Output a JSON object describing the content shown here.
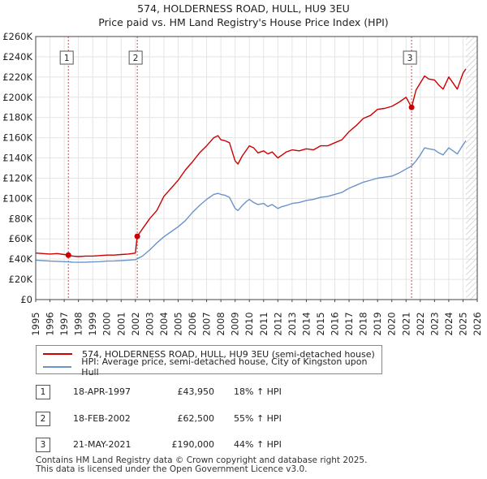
{
  "title": {
    "line1": "574, HOLDERNESS ROAD, HULL, HU9 3EU",
    "line2": "Price paid vs. HM Land Registry's House Price Index (HPI)"
  },
  "legend": {
    "property_label": "574, HOLDERNESS ROAD, HULL, HU9 3EU (semi-detached house)",
    "hpi_label": "HPI: Average price, semi-detached house, City of Kingston upon Hull"
  },
  "sales": [
    {
      "num": "1",
      "date": "18-APR-1997",
      "price": "£43,950",
      "hpi": "18% ↑ HPI"
    },
    {
      "num": "2",
      "date": "18-FEB-2002",
      "price": "£62,500",
      "hpi": "55% ↑ HPI"
    },
    {
      "num": "3",
      "date": "21-MAY-2021",
      "price": "£190,000",
      "hpi": "44% ↑ HPI"
    }
  ],
  "footer": {
    "line1": "Contains HM Land Registry data © Crown copyright and database right 2025.",
    "line2": "This data is licensed under the Open Government Licence v3.0."
  },
  "colors": {
    "property": "#cc0000",
    "hpi": "#6a93c9",
    "grid": "#e4e4e4",
    "plot_bg": "#ffffff",
    "future_hatch": "#c9c9c9",
    "marker_line": "#d05050"
  },
  "chart_data": {
    "type": "line",
    "x_range": [
      1995,
      2026
    ],
    "ylim": [
      0,
      260000
    ],
    "y_ticks": [
      0,
      20000,
      40000,
      60000,
      80000,
      100000,
      120000,
      140000,
      160000,
      180000,
      200000,
      220000,
      240000,
      260000
    ],
    "y_tick_labels": [
      "£0",
      "£20K",
      "£40K",
      "£60K",
      "£80K",
      "£100K",
      "£120K",
      "£140K",
      "£160K",
      "£180K",
      "£200K",
      "£220K",
      "£240K",
      "£260K"
    ],
    "x_ticks": [
      1995,
      1996,
      1997,
      1998,
      1999,
      2000,
      2001,
      2002,
      2003,
      2004,
      2005,
      2006,
      2007,
      2008,
      2009,
      2010,
      2011,
      2012,
      2013,
      2014,
      2015,
      2016,
      2017,
      2018,
      2019,
      2020,
      2021,
      2022,
      2023,
      2024,
      2025,
      2026
    ],
    "x_tick_labels": [
      "1995",
      "1996",
      "1997",
      "1998",
      "1999",
      "2000",
      "2001",
      "2002",
      "2003",
      "2004",
      "2005",
      "2006",
      "2007",
      "2008",
      "2009",
      "2010",
      "2011",
      "2012",
      "2013",
      "2014",
      "2015",
      "2016",
      "2017",
      "2018",
      "2019",
      "2020",
      "2021",
      "2022",
      "2023",
      "2024",
      "2025",
      "2026"
    ],
    "data_end_year": 2025.2,
    "series": [
      {
        "name": "574, HOLDERNESS ROAD, HULL, HU9 3EU (semi-detached house)",
        "x": [
          1995.0,
          1995.5,
          1996.0,
          1996.5,
          1997.0,
          1997.29,
          1997.6,
          1998.0,
          1998.5,
          1999.0,
          1999.5,
          2000.0,
          2000.5,
          2001.0,
          2001.5,
          2002.0,
          2002.13,
          2002.5,
          2003.0,
          2003.5,
          2004.0,
          2004.5,
          2005.0,
          2005.5,
          2006.0,
          2006.5,
          2007.0,
          2007.5,
          2007.8,
          2008.0,
          2008.3,
          2008.6,
          2009.0,
          2009.2,
          2009.5,
          2009.8,
          2010.0,
          2010.3,
          2010.6,
          2011.0,
          2011.3,
          2011.6,
          2012.0,
          2012.3,
          2012.6,
          2013.0,
          2013.5,
          2014.0,
          2014.5,
          2015.0,
          2015.5,
          2016.0,
          2016.5,
          2017.0,
          2017.5,
          2018.0,
          2018.5,
          2019.0,
          2019.5,
          2020.0,
          2020.5,
          2021.0,
          2021.39,
          2021.7,
          2022.0,
          2022.3,
          2022.6,
          2023.0,
          2023.3,
          2023.6,
          2024.0,
          2024.3,
          2024.6,
          2025.0,
          2025.2
        ],
        "values": [
          46000,
          45500,
          45000,
          45500,
          44500,
          43950,
          43000,
          42500,
          43000,
          43000,
          43500,
          44000,
          44000,
          44500,
          45000,
          46000,
          62500,
          70000,
          80000,
          88000,
          102000,
          110000,
          118000,
          128000,
          136000,
          145000,
          152000,
          160000,
          162000,
          158000,
          157000,
          155000,
          137000,
          134000,
          142000,
          148000,
          152000,
          150000,
          145000,
          147000,
          144000,
          146000,
          140000,
          143000,
          146000,
          148000,
          147000,
          149000,
          148000,
          152000,
          152000,
          155000,
          158000,
          166000,
          172000,
          179000,
          182000,
          188000,
          189000,
          191000,
          195000,
          200000,
          190000,
          207000,
          214000,
          221000,
          218000,
          217000,
          212000,
          208000,
          220000,
          214000,
          208000,
          224000,
          228000
        ]
      },
      {
        "name": "HPI: Average price, semi-detached house, City of Kingston upon Hull",
        "x": [
          1995.0,
          1995.5,
          1996.0,
          1996.5,
          1997.0,
          1997.29,
          1997.6,
          1998.0,
          1998.5,
          1999.0,
          1999.5,
          2000.0,
          2000.5,
          2001.0,
          2001.5,
          2002.0,
          2002.13,
          2002.5,
          2003.0,
          2003.5,
          2004.0,
          2004.5,
          2005.0,
          2005.5,
          2006.0,
          2006.5,
          2007.0,
          2007.5,
          2007.8,
          2008.0,
          2008.3,
          2008.6,
          2009.0,
          2009.2,
          2009.5,
          2009.8,
          2010.0,
          2010.3,
          2010.6,
          2011.0,
          2011.3,
          2011.6,
          2012.0,
          2012.3,
          2012.6,
          2013.0,
          2013.5,
          2014.0,
          2014.5,
          2015.0,
          2015.5,
          2016.0,
          2016.5,
          2017.0,
          2017.5,
          2018.0,
          2018.5,
          2019.0,
          2019.5,
          2020.0,
          2020.5,
          2021.0,
          2021.39,
          2021.7,
          2022.0,
          2022.3,
          2022.6,
          2023.0,
          2023.3,
          2023.6,
          2024.0,
          2024.3,
          2024.6,
          2025.0,
          2025.2
        ],
        "values": [
          39000,
          38500,
          38000,
          37800,
          37500,
          37300,
          37000,
          36800,
          37000,
          37200,
          37500,
          38000,
          38200,
          38500,
          39000,
          39500,
          40300,
          43000,
          49000,
          56000,
          62000,
          67000,
          72000,
          78000,
          86000,
          93000,
          99000,
          104000,
          105000,
          104000,
          103000,
          101000,
          90000,
          88000,
          93000,
          97000,
          99000,
          96000,
          94000,
          95000,
          92000,
          94000,
          90000,
          92000,
          93000,
          95000,
          96000,
          98000,
          99000,
          101000,
          102000,
          104000,
          106000,
          110000,
          113000,
          116000,
          118000,
          120000,
          121000,
          122000,
          125000,
          129000,
          132000,
          137000,
          143000,
          150000,
          149000,
          148000,
          145000,
          143000,
          150000,
          147000,
          144000,
          153000,
          157000
        ]
      }
    ],
    "sale_markers": [
      {
        "label": "1",
        "x": 1997.29,
        "value": 43950
      },
      {
        "label": "2",
        "x": 2002.13,
        "value": 62500
      },
      {
        "label": "3",
        "x": 2021.39,
        "value": 190000
      }
    ]
  }
}
